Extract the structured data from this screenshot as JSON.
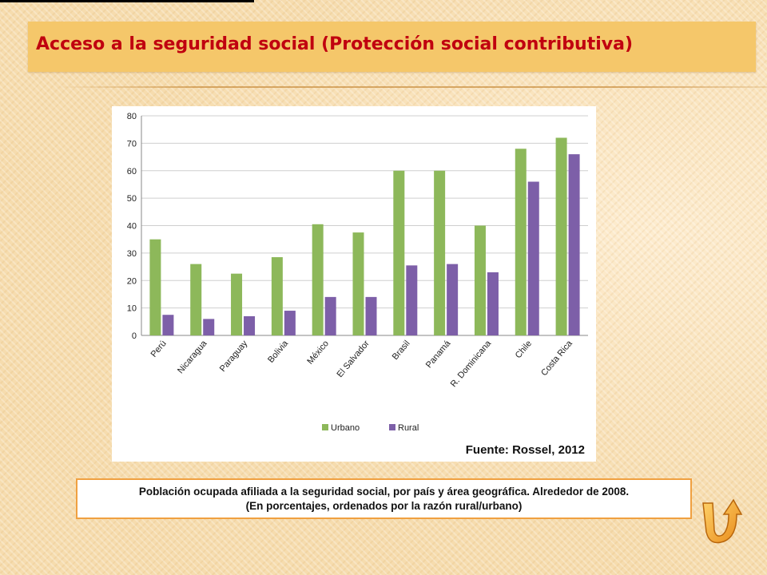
{
  "slide": {
    "title": "Acceso a la seguridad social (Protección social contributiva)",
    "caption_line1": "Población ocupada afiliada a la seguridad social, por país y área geográfica. Alrededor de 2008.",
    "caption_line2": "(En porcentajes, ordenados por la razón rural/urbano)",
    "nav_icon": "return-arrow-icon"
  },
  "chart_data": {
    "type": "bar",
    "categories": [
      "Perú",
      "Nicaragua",
      "Paraguay",
      "Bolivia",
      "México",
      "El Salvador",
      "Brasil",
      "Panamá",
      "R. Dominicana",
      "Chile",
      "Costa Rica"
    ],
    "series": [
      {
        "name": "Urbano",
        "color": "#8db85a",
        "values": [
          35,
          26,
          22.5,
          28.5,
          40.5,
          37.5,
          60,
          60,
          40,
          68,
          72
        ]
      },
      {
        "name": "Rural",
        "color": "#7d5fa8",
        "values": [
          7.5,
          6,
          7,
          9,
          14,
          14,
          25.5,
          26,
          23,
          56,
          66
        ]
      }
    ],
    "ylim": [
      0,
      80
    ],
    "yticks": [
      0,
      10,
      20,
      30,
      40,
      50,
      60,
      70,
      80
    ],
    "grid": true,
    "legend": "bottom-left",
    "source": "Fuente: Rossel, 2012"
  }
}
